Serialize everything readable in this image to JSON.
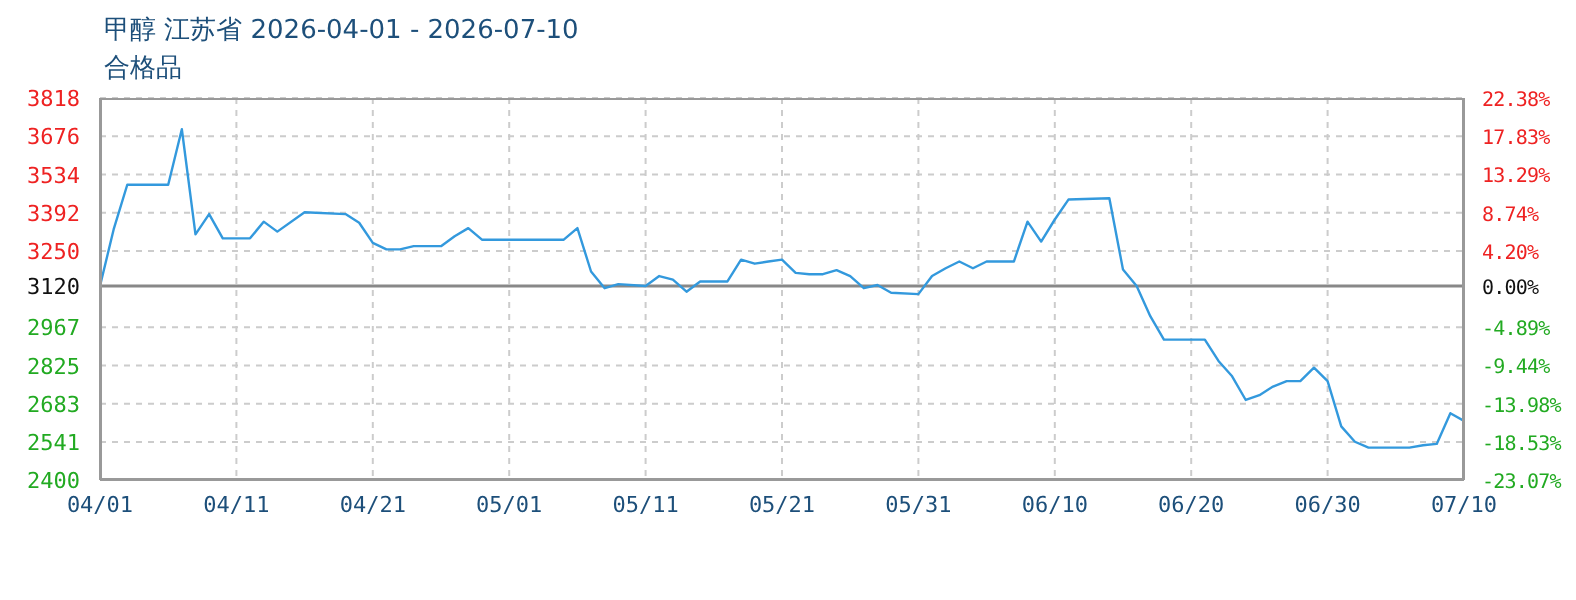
{
  "chart_data": {
    "type": "line",
    "title": "甲醇 江苏省 2026-04-01 - 2026-07-10",
    "subtitle": "合格品",
    "x": [
      "2026-04-01",
      "2026-04-02",
      "2026-04-03",
      "2026-04-06",
      "2026-04-07",
      "2026-04-08",
      "2026-04-09",
      "2026-04-10",
      "2026-04-12",
      "2026-04-13",
      "2026-04-14",
      "2026-04-16",
      "2026-04-19",
      "2026-04-20",
      "2026-04-21",
      "2026-04-22",
      "2026-04-23",
      "2026-04-24",
      "2026-04-26",
      "2026-04-27",
      "2026-04-28",
      "2026-04-29",
      "2026-05-05",
      "2026-05-06",
      "2026-05-07",
      "2026-05-08",
      "2026-05-09",
      "2026-05-11",
      "2026-05-12",
      "2026-05-13",
      "2026-05-14",
      "2026-05-15",
      "2026-05-17",
      "2026-05-18",
      "2026-05-19",
      "2026-05-20",
      "2026-05-21",
      "2026-05-22",
      "2026-05-23",
      "2026-05-24",
      "2026-05-25",
      "2026-05-26",
      "2026-05-27",
      "2026-05-28",
      "2026-05-29",
      "2026-05-31",
      "2026-06-01",
      "2026-06-02",
      "2026-06-03",
      "2026-06-04",
      "2026-06-05",
      "2026-06-07",
      "2026-06-08",
      "2026-06-09",
      "2026-06-10",
      "2026-06-11",
      "2026-06-14",
      "2026-06-15",
      "2026-06-16",
      "2026-06-17",
      "2026-06-18",
      "2026-06-21",
      "2026-06-22",
      "2026-06-23",
      "2026-06-24",
      "2026-06-25",
      "2026-06-26",
      "2026-06-27",
      "2026-06-28",
      "2026-06-29",
      "2026-06-30",
      "2026-07-01",
      "2026-07-02",
      "2026-07-03",
      "2026-07-06",
      "2026-07-07",
      "2026-07-08",
      "2026-07-09",
      "2026-07-10"
    ],
    "series": [
      {
        "color": "#3399dd",
        "values": [
          3120,
          3330,
          3496,
          3496,
          3702,
          3312,
          3387,
          3297,
          3297,
          3359,
          3322,
          3394,
          3387,
          3355,
          3280,
          3256,
          3256,
          3268,
          3268,
          3305,
          3335,
          3292,
          3292,
          3335,
          3174,
          3112,
          3127,
          3120,
          3157,
          3144,
          3099,
          3137,
          3137,
          3218,
          3203,
          3211,
          3218,
          3169,
          3164,
          3164,
          3179,
          3157,
          3112,
          3124,
          3095,
          3090,
          3157,
          3186,
          3211,
          3186,
          3211,
          3211,
          3359,
          3285,
          3367,
          3441,
          3446,
          3181,
          3120,
          3008,
          2921,
          2921,
          2842,
          2785,
          2697,
          2715,
          2747,
          2767,
          2767,
          2817,
          2767,
          2599,
          2542,
          2520,
          2520,
          2529,
          2534,
          2648,
          2619
        ]
      }
    ],
    "xlim": [
      "2026-04-01",
      "2026-07-10"
    ],
    "xticks": [
      {
        "value": "2026-04-01",
        "label": "04/01"
      },
      {
        "value": "2026-04-11",
        "label": "04/11"
      },
      {
        "value": "2026-04-21",
        "label": "04/21"
      },
      {
        "value": "2026-05-01",
        "label": "05/01"
      },
      {
        "value": "2026-05-11",
        "label": "05/11"
      },
      {
        "value": "2026-05-21",
        "label": "05/21"
      },
      {
        "value": "2026-05-31",
        "label": "05/31"
      },
      {
        "value": "2026-06-10",
        "label": "06/10"
      },
      {
        "value": "2026-06-20",
        "label": "06/20"
      },
      {
        "value": "2026-06-30",
        "label": "06/30"
      },
      {
        "value": "2026-07-10",
        "label": "07/10"
      }
    ],
    "ylim": [
      2400,
      3818
    ],
    "yticks": [
      2400,
      2541,
      2683,
      2825,
      2967,
      3120,
      3250,
      3392,
      3534,
      3676,
      3818
    ],
    "y2lim": [
      -23.07,
      22.38
    ],
    "y2ticks": [
      {
        "value": -23.07,
        "label": "-23.07%"
      },
      {
        "value": -18.53,
        "label": "-18.53%"
      },
      {
        "value": -13.98,
        "label": "-13.98%"
      },
      {
        "value": -9.44,
        "label": "-9.44%"
      },
      {
        "value": -4.89,
        "label": "-4.89%"
      },
      {
        "value": 0,
        "label": "0.00%"
      },
      {
        "value": 4.2,
        "label": "4.20%"
      },
      {
        "value": 8.74,
        "label": "8.74%"
      },
      {
        "value": 13.29,
        "label": "13.29%"
      },
      {
        "value": 17.83,
        "label": "17.83%"
      },
      {
        "value": 22.38,
        "label": "22.38%"
      }
    ],
    "ref_lines": [
      {
        "axis": "y",
        "value": 3120,
        "color": "#888888"
      }
    ],
    "grid": true,
    "marker": "none",
    "line_style": "solid"
  }
}
